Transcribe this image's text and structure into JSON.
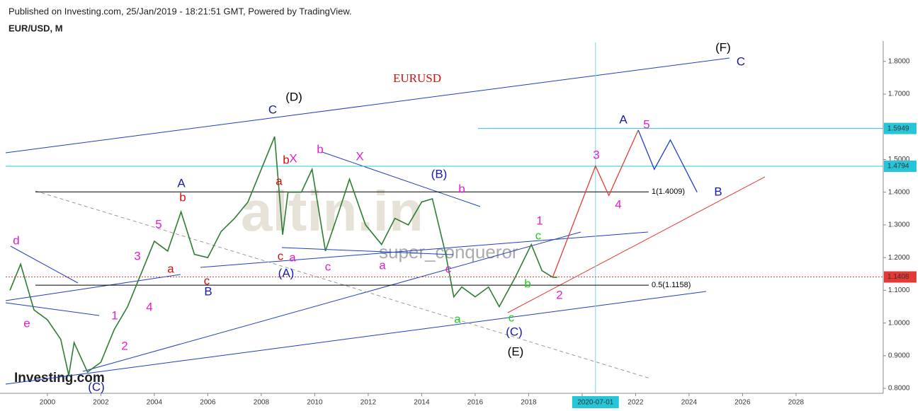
{
  "header": {
    "published": "Published on Investing.com, 25/Jan/2019 - 18:21:51 GMT, Powered by TradingView.",
    "symbol": "EUR/USD, M",
    "logo": "Investing.com",
    "watermark": "altin.in",
    "author": "super_conqueror"
  },
  "chart_data": {
    "type": "line",
    "title": "EURUSD",
    "x": [
      1998.6,
      1999.0,
      1999.5,
      2000.0,
      2000.5,
      2000.8,
      2001.0,
      2001.5,
      2002.0,
      2002.5,
      2003.0,
      2003.5,
      2004.0,
      2004.5,
      2005.0,
      2005.5,
      2006.0,
      2006.5,
      2007.0,
      2007.5,
      2008.0,
      2008.5,
      2008.8,
      2009.0,
      2009.5,
      2009.9,
      2010.4,
      2010.9,
      2011.3,
      2011.9,
      2012.5,
      2013.0,
      2013.5,
      2014.0,
      2014.4,
      2014.9,
      2015.2,
      2015.5,
      2016.0,
      2016.5,
      2016.9,
      2017.5,
      2018.1,
      2018.5,
      2018.9,
      2019.07
    ],
    "series": [
      {
        "color": "#2e7d32",
        "values": [
          1.1,
          1.18,
          1.04,
          1.01,
          0.95,
          0.84,
          0.94,
          0.85,
          0.88,
          0.98,
          1.05,
          1.15,
          1.25,
          1.22,
          1.34,
          1.21,
          1.2,
          1.28,
          1.32,
          1.37,
          1.47,
          1.57,
          1.27,
          1.4,
          1.4,
          1.47,
          1.22,
          1.34,
          1.44,
          1.3,
          1.24,
          1.32,
          1.3,
          1.37,
          1.38,
          1.21,
          1.08,
          1.11,
          1.08,
          1.11,
          1.05,
          1.14,
          1.24,
          1.16,
          1.14,
          1.14
        ]
      }
    ],
    "projections": [
      {
        "color": "#e53935",
        "x": [
          2018.9,
          2020.5,
          2021.0,
          2022.1
        ],
        "values": [
          1.14,
          1.48,
          1.39,
          1.59
        ]
      },
      {
        "color": "#1e3fbf",
        "x": [
          2022.1,
          2022.7,
          2023.3,
          2024.3
        ],
        "values": [
          1.59,
          1.47,
          1.56,
          1.4
        ]
      }
    ],
    "xlim": [
      1998.44,
      2031.26
    ],
    "ylim": [
      0.785,
      1.858
    ],
    "xticks": [
      2000,
      2002,
      2004,
      2006,
      2008,
      2010,
      2012,
      2014,
      2016,
      2018,
      2020,
      2022,
      2024,
      2026,
      2028
    ],
    "marker_date": {
      "value": 2020.5,
      "label": "2020-07-01"
    },
    "yticks": [
      {
        "value": 0.8,
        "label": "0.8000"
      },
      {
        "value": 0.9,
        "label": "0.9000"
      },
      {
        "value": 1.0,
        "label": "1.0000"
      },
      {
        "value": 1.1,
        "label": "1.1000"
      },
      {
        "value": 1.2,
        "label": "1.2000"
      },
      {
        "value": 1.3,
        "label": "1.3000"
      },
      {
        "value": 1.4,
        "label": "1.4000"
      },
      {
        "value": 1.5,
        "label": "1.5000"
      },
      {
        "value": 1.6,
        "label": "1.6000"
      },
      {
        "value": 1.7,
        "label": "1.7000"
      },
      {
        "value": 1.8,
        "label": "1.8000"
      }
    ],
    "price_marks": [
      {
        "value": 1.5949,
        "color": "#26c6da"
      },
      {
        "value": 1.4794,
        "color": "#26c6da"
      },
      {
        "value": 1.1408,
        "color": "#e53935"
      }
    ],
    "levels": [
      {
        "value": 1.4009,
        "label": "1(1.4009)"
      },
      {
        "value": 1.1158,
        "label": "0.5(1.1158)"
      }
    ],
    "wave_labels": [
      {
        "text": "(F)",
        "color": "#000"
      },
      {
        "text": "C",
        "color": "#1a1aa6"
      },
      {
        "text": "(D)",
        "color": "#000"
      },
      {
        "text": "C",
        "color": "#1a1aa6"
      },
      {
        "text": "A",
        "color": "#1a1aa6"
      },
      {
        "text": "5",
        "color": "#e020d0"
      },
      {
        "text": "3",
        "color": "#e020d0"
      },
      {
        "text": "b",
        "color": "#e020d0"
      },
      {
        "text": "X",
        "color": "#e020d0"
      },
      {
        "text": "X",
        "color": "#e020d0"
      },
      {
        "text": "b",
        "color": "#d01010"
      },
      {
        "text": "(B)",
        "color": "#1a1aa6"
      },
      {
        "text": "b",
        "color": "#e020d0"
      },
      {
        "text": "a",
        "color": "#d01010"
      },
      {
        "text": "A",
        "color": "#1a1aa6"
      },
      {
        "text": "b",
        "color": "#d01010"
      },
      {
        "text": "4",
        "color": "#e020d0"
      },
      {
        "text": "B",
        "color": "#1a1aa6"
      },
      {
        "text": "5",
        "color": "#e020d0"
      },
      {
        "text": "1",
        "color": "#e020d0"
      },
      {
        "text": "c",
        "color": "#22cc22"
      },
      {
        "text": "3",
        "color": "#e020d0"
      },
      {
        "text": "c",
        "color": "#d01010"
      },
      {
        "text": "a",
        "color": "#e020d0"
      },
      {
        "text": "c",
        "color": "#e020d0"
      },
      {
        "text": "a",
        "color": "#e020d0"
      },
      {
        "text": "c",
        "color": "#e020d0"
      },
      {
        "text": "a",
        "color": "#d01010"
      },
      {
        "text": "c",
        "color": "#d01010"
      },
      {
        "text": "(A)",
        "color": "#1a1aa6"
      },
      {
        "text": "B",
        "color": "#1a1aa6"
      },
      {
        "text": "b",
        "color": "#22cc22"
      },
      {
        "text": "2",
        "color": "#e020d0"
      },
      {
        "text": "4",
        "color": "#e020d0"
      },
      {
        "text": "1",
        "color": "#e020d0"
      },
      {
        "text": "a",
        "color": "#22cc22"
      },
      {
        "text": "c",
        "color": "#22cc22"
      },
      {
        "text": "e",
        "color": "#e020d0"
      },
      {
        "text": "(C)",
        "color": "#1a1aa6"
      },
      {
        "text": "2",
        "color": "#e020d0"
      },
      {
        "text": "(E)",
        "color": "#000"
      },
      {
        "text": "(C)",
        "color": "#1a1aa6"
      },
      {
        "text": "d",
        "color": "#e020d0"
      }
    ]
  }
}
